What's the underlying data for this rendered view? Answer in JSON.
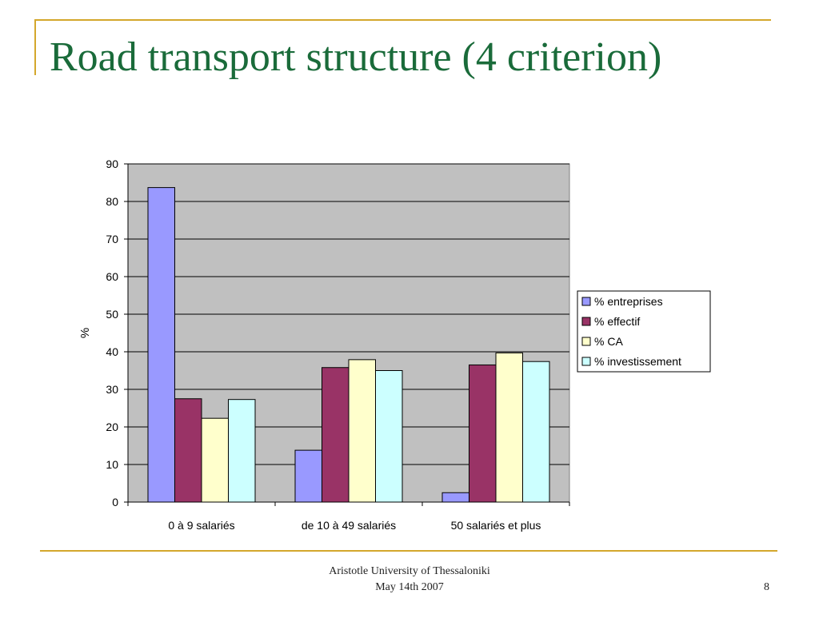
{
  "slide": {
    "title": "Road transport structure (4 criterion)",
    "footer_org": "Aristotle University of Thessaloniki",
    "footer_date": "May 14th 2007",
    "page_number": "8"
  },
  "chart_data": {
    "type": "bar",
    "title": "",
    "xlabel": "",
    "ylabel": "%",
    "ylim": [
      0,
      90
    ],
    "yticks": [
      0,
      10,
      20,
      30,
      40,
      50,
      60,
      70,
      80,
      90
    ],
    "grid": true,
    "legend_position": "right",
    "categories": [
      "0 à 9 salariés",
      "de 10 à 49 salariés",
      "50 salariés et plus"
    ],
    "series": [
      {
        "name": "% entreprises",
        "color": "#9999ff",
        "values": [
          83.7,
          13.8,
          2.5
        ]
      },
      {
        "name": "% effectif",
        "color": "#993366",
        "values": [
          27.5,
          35.8,
          36.5
        ]
      },
      {
        "name": "% CA",
        "color": "#ffffcc",
        "values": [
          22.3,
          37.9,
          39.7
        ]
      },
      {
        "name": "% investissement",
        "color": "#ccffff",
        "values": [
          27.3,
          35.0,
          37.4
        ]
      }
    ],
    "plot_background": "#c0c0c0"
  }
}
